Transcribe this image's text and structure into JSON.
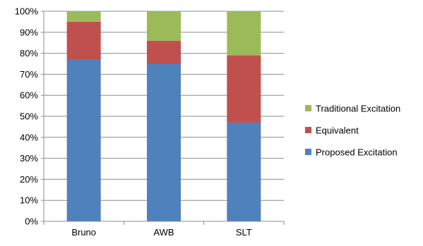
{
  "chart_data": {
    "type": "bar",
    "stacked": true,
    "percent_stacked": true,
    "categories": [
      "Bruno",
      "AWB",
      "SLT"
    ],
    "series": [
      {
        "name": "Proposed Excitation",
        "values": [
          77,
          75,
          47
        ],
        "color": "#4f81bd"
      },
      {
        "name": "Equivalent",
        "values": [
          18,
          11,
          32
        ],
        "color": "#c0504d"
      },
      {
        "name": "Traditional Excitation",
        "values": [
          5,
          14,
          21
        ],
        "color": "#9bbb59"
      }
    ],
    "y_ticks": [
      "0%",
      "10%",
      "20%",
      "30%",
      "40%",
      "50%",
      "60%",
      "70%",
      "80%",
      "90%",
      "100%"
    ],
    "ylim": [
      0,
      100
    ],
    "grid": true,
    "legend_position": "right"
  }
}
